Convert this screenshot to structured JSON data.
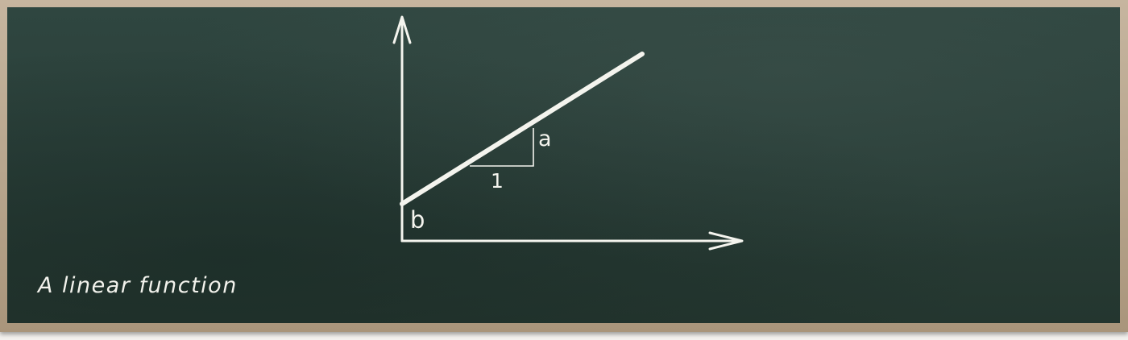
{
  "diagram": {
    "caption": "A linear function",
    "labels": {
      "slope": "a",
      "run": "1",
      "intercept": "b"
    }
  },
  "colors": {
    "chalk": "#f4f4ee",
    "board": "#2a3f39",
    "frame": "#b8a68e"
  }
}
